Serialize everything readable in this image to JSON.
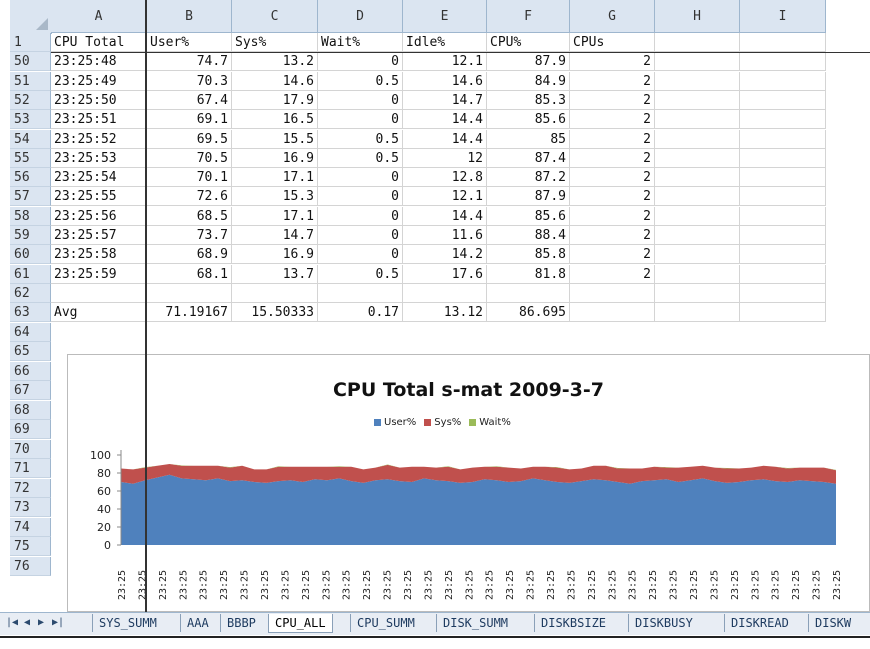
{
  "columns": [
    "A",
    "B",
    "C",
    "D",
    "E",
    "F",
    "G",
    "H",
    "I"
  ],
  "header_row": {
    "num": "1",
    "cells": [
      "CPU Total",
      "User%",
      "Sys%",
      "Wait%",
      "Idle%",
      "CPU%",
      "CPUs"
    ]
  },
  "rows": [
    {
      "num": "50",
      "cells": [
        "23:25:48",
        "74.7",
        "13.2",
        "0",
        "12.1",
        "87.9",
        "2"
      ]
    },
    {
      "num": "51",
      "cells": [
        "23:25:49",
        "70.3",
        "14.6",
        "0.5",
        "14.6",
        "84.9",
        "2"
      ]
    },
    {
      "num": "52",
      "cells": [
        "23:25:50",
        "67.4",
        "17.9",
        "0",
        "14.7",
        "85.3",
        "2"
      ]
    },
    {
      "num": "53",
      "cells": [
        "23:25:51",
        "69.1",
        "16.5",
        "0",
        "14.4",
        "85.6",
        "2"
      ]
    },
    {
      "num": "54",
      "cells": [
        "23:25:52",
        "69.5",
        "15.5",
        "0.5",
        "14.4",
        "85",
        "2"
      ]
    },
    {
      "num": "55",
      "cells": [
        "23:25:53",
        "70.5",
        "16.9",
        "0.5",
        "12",
        "87.4",
        "2"
      ]
    },
    {
      "num": "56",
      "cells": [
        "23:25:54",
        "70.1",
        "17.1",
        "0",
        "12.8",
        "87.2",
        "2"
      ]
    },
    {
      "num": "57",
      "cells": [
        "23:25:55",
        "72.6",
        "15.3",
        "0",
        "12.1",
        "87.9",
        "2"
      ]
    },
    {
      "num": "58",
      "cells": [
        "23:25:56",
        "68.5",
        "17.1",
        "0",
        "14.4",
        "85.6",
        "2"
      ]
    },
    {
      "num": "59",
      "cells": [
        "23:25:57",
        "73.7",
        "14.7",
        "0",
        "11.6",
        "88.4",
        "2"
      ]
    },
    {
      "num": "60",
      "cells": [
        "23:25:58",
        "68.9",
        "16.9",
        "0",
        "14.2",
        "85.8",
        "2"
      ]
    },
    {
      "num": "61",
      "cells": [
        "23:25:59",
        "68.1",
        "13.7",
        "0.5",
        "17.6",
        "81.8",
        "2"
      ]
    },
    {
      "num": "62",
      "cells": [
        "",
        "",
        "",
        "",
        "",
        "",
        ""
      ]
    },
    {
      "num": "63",
      "cells": [
        "Avg",
        "71.19167",
        "15.50333",
        "0.17",
        "13.12",
        "86.695",
        ""
      ]
    }
  ],
  "chart_rows": [
    "64",
    "65",
    "66",
    "67",
    "68",
    "69",
    "70",
    "71",
    "72",
    "73",
    "74",
    "75",
    "76"
  ],
  "chart_data": {
    "type": "area",
    "title": "CPU Total s-mat  2009-3-7",
    "legend": [
      "User%",
      "Sys%",
      "Wait%"
    ],
    "legend_position": "top-center",
    "colors": {
      "User%": "#4f81bd",
      "Sys%": "#c0504d",
      "Wait%": "#9bbb59"
    },
    "ylim": [
      0,
      100
    ],
    "yticks": [
      "0",
      "20",
      "40",
      "60",
      "80",
      "100"
    ],
    "x_tick_label": "23:25",
    "x_tick_count": 36,
    "series": [
      {
        "name": "User%",
        "values": [
          70,
          68,
          72,
          75,
          78,
          74,
          73,
          72,
          74,
          71,
          72,
          70,
          69,
          71,
          72,
          70,
          73,
          72,
          74,
          71,
          69,
          72,
          73,
          71,
          70,
          74,
          72,
          71,
          69,
          70,
          73,
          72,
          70,
          71,
          74,
          72,
          70,
          69,
          71,
          73,
          72,
          70,
          68,
          71,
          72,
          73,
          70,
          72,
          74,
          71,
          69,
          70,
          72,
          73,
          71,
          70,
          72,
          71,
          70,
          68
        ]
      },
      {
        "name": "Sys%",
        "values": [
          15,
          16,
          14,
          13,
          12,
          14,
          15,
          16,
          14,
          15,
          16,
          14,
          15,
          16,
          15,
          17,
          14,
          15,
          13,
          16,
          15,
          14,
          16,
          15,
          17,
          13,
          14,
          16,
          15,
          16,
          14,
          15,
          16,
          14,
          13,
          15,
          16,
          15,
          14,
          15,
          16,
          15,
          17,
          14,
          15,
          13,
          16,
          15,
          14,
          15,
          16,
          15,
          14,
          15,
          16,
          15,
          14,
          15,
          16,
          15
        ]
      },
      {
        "name": "Wait%",
        "values": [
          0,
          0,
          0.5,
          0,
          0,
          0.5,
          0,
          0,
          0,
          0.5,
          0,
          0,
          0,
          0.5,
          0,
          0,
          0,
          0,
          0.5,
          0,
          0,
          0,
          0.5,
          0,
          0,
          0,
          0,
          0.5,
          0,
          0,
          0,
          0.5,
          0,
          0,
          0,
          0,
          0.5,
          0,
          0,
          0,
          0,
          0.5,
          0,
          0,
          0,
          0.5,
          0,
          0,
          0,
          0,
          0.5,
          0,
          0,
          0,
          0,
          0.5,
          0,
          0,
          0,
          0.5
        ]
      }
    ]
  },
  "sheet_tabs": [
    "SYS_SUMM",
    "AAA",
    "BBBP",
    "CPU_ALL",
    "CPU_SUMM",
    "DISK_SUMM",
    "DISKBSIZE",
    "DISKBUSY",
    "DISKREAD",
    "DISKW"
  ],
  "active_tab": "CPU_ALL"
}
